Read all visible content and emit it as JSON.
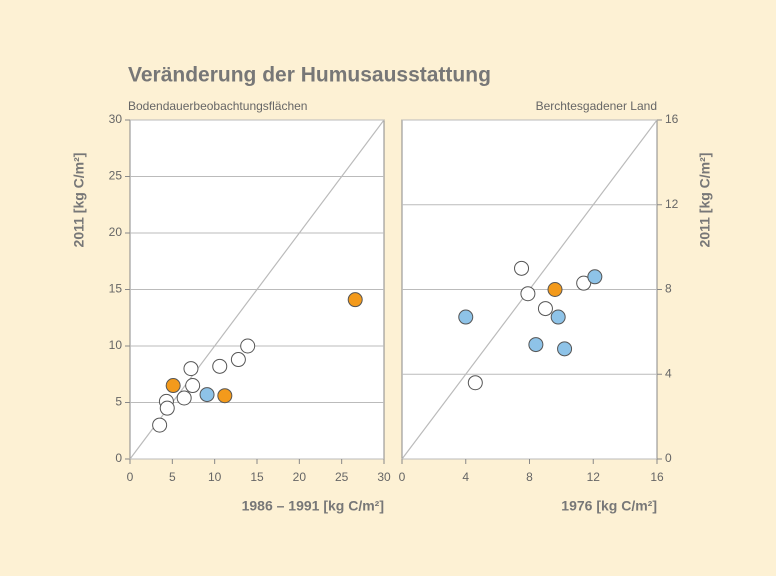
{
  "title": "Veränderung der Humusausstattung",
  "chart_data": [
    {
      "type": "scatter",
      "subtitle": "Bodendauerbeobachtungsflächen",
      "xlabel": "1986 – 1991 [kg C/m²]",
      "ylabel": "2011 [kg C/m²]",
      "xlim": [
        0,
        30
      ],
      "ylim": [
        0,
        30
      ],
      "xticks": [
        0,
        5,
        10,
        15,
        20,
        25,
        30
      ],
      "yticks": [
        0,
        5,
        10,
        15,
        20,
        25,
        30
      ],
      "grid": true,
      "y_axis_position": "left",
      "series": [
        {
          "color": "#ffffff",
          "x": [
            3.5,
            4.3,
            4.4,
            6.4,
            7.2,
            7.4,
            10.6,
            12.8,
            13.9
          ],
          "values": [
            3.0,
            5.1,
            4.5,
            5.4,
            8.0,
            6.5,
            8.2,
            8.8,
            10.0
          ]
        },
        {
          "color": "#f39a1b",
          "x": [
            5.1,
            11.2,
            26.6
          ],
          "values": [
            6.5,
            5.6,
            14.1
          ]
        },
        {
          "color": "#8ec3e8",
          "x": [
            9.1
          ],
          "values": [
            5.7
          ]
        }
      ]
    },
    {
      "type": "scatter",
      "subtitle": "Berchtesgadener Land",
      "xlabel": "1976 [kg C/m²]",
      "ylabel": "2011 [kg C/m²]",
      "xlim": [
        0,
        16
      ],
      "ylim": [
        0,
        16
      ],
      "xticks": [
        0,
        4,
        8,
        12,
        16
      ],
      "yticks": [
        0,
        4,
        8,
        12,
        16
      ],
      "grid": true,
      "y_axis_position": "right",
      "series": [
        {
          "color": "#ffffff",
          "x": [
            4.6,
            7.5,
            7.9,
            9.0,
            11.4
          ],
          "values": [
            3.6,
            9.0,
            7.8,
            7.1,
            8.3
          ]
        },
        {
          "color": "#f39a1b",
          "x": [
            9.6
          ],
          "values": [
            8.0
          ]
        },
        {
          "color": "#8ec3e8",
          "x": [
            4.0,
            8.4,
            9.8,
            10.2,
            12.1
          ],
          "values": [
            6.7,
            5.4,
            6.7,
            5.2,
            8.6
          ]
        }
      ]
    }
  ]
}
